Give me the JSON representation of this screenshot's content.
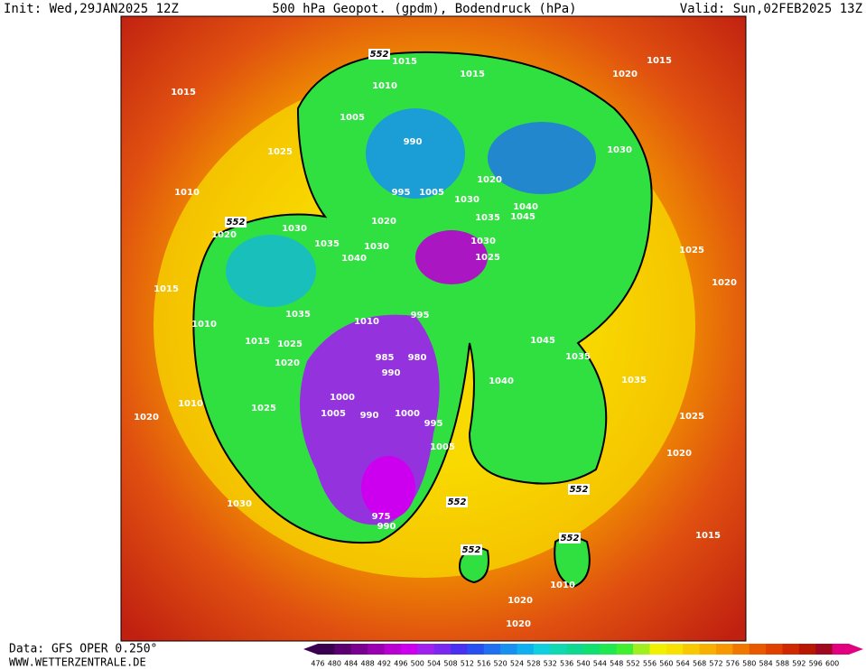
{
  "header": {
    "init": "Init: Wed,29JAN2025 12Z",
    "title": "500 hPa Geopot. (gpdm), Bodendruck (hPa)",
    "valid": "Valid: Sun,02FEB2025 13Z"
  },
  "footer": {
    "source": "Data: GFS OPER 0.250°",
    "site": "WWW.WETTERZENTRALE.DE"
  },
  "colorbar": {
    "levels": [
      476,
      480,
      484,
      488,
      492,
      496,
      500,
      504,
      508,
      512,
      516,
      520,
      524,
      528,
      532,
      536,
      540,
      544,
      548,
      552,
      556,
      560,
      564,
      568,
      572,
      576,
      580,
      584,
      588,
      592,
      596,
      600
    ],
    "colors": [
      "#3a0050",
      "#5a0070",
      "#7a0090",
      "#9a00b0",
      "#b800d0",
      "#cc00ee",
      "#a020f0",
      "#7a28f0",
      "#4a30f0",
      "#2850f0",
      "#2070f0",
      "#1890f0",
      "#10b0f0",
      "#10d0e0",
      "#10d8b0",
      "#10d890",
      "#10e070",
      "#20e850",
      "#40f030",
      "#a0f020",
      "#f0f000",
      "#f8e000",
      "#f8c800",
      "#f8b000",
      "#f89800",
      "#f07800",
      "#e85800",
      "#e04000",
      "#d02800",
      "#b81800",
      "#a00820",
      "#e00080"
    ]
  },
  "map": {
    "labels": [
      "552",
      "1015",
      "1015",
      "1010",
      "1005",
      "990",
      "1015",
      "1025",
      "1010",
      "1005",
      "995",
      "1020",
      "1030",
      "1035",
      "1040",
      "1045",
      "1030",
      "1025",
      "1020",
      "1030",
      "1035",
      "1040",
      "1030",
      "552",
      "1020",
      "1015",
      "1010",
      "1035",
      "1010",
      "995",
      "1015",
      "1025",
      "1020",
      "985",
      "980",
      "990",
      "1000",
      "1005",
      "990",
      "1000",
      "995",
      "1005",
      "1025",
      "1010",
      "1020",
      "1030",
      "975",
      "990",
      "552",
      "552",
      "552",
      "1045",
      "1035",
      "1040",
      "1035",
      "1025",
      "1020",
      "1015",
      "1025",
      "1015",
      "1020",
      "1030",
      "1020",
      "1020",
      "1020",
      "552",
      "1010"
    ]
  }
}
